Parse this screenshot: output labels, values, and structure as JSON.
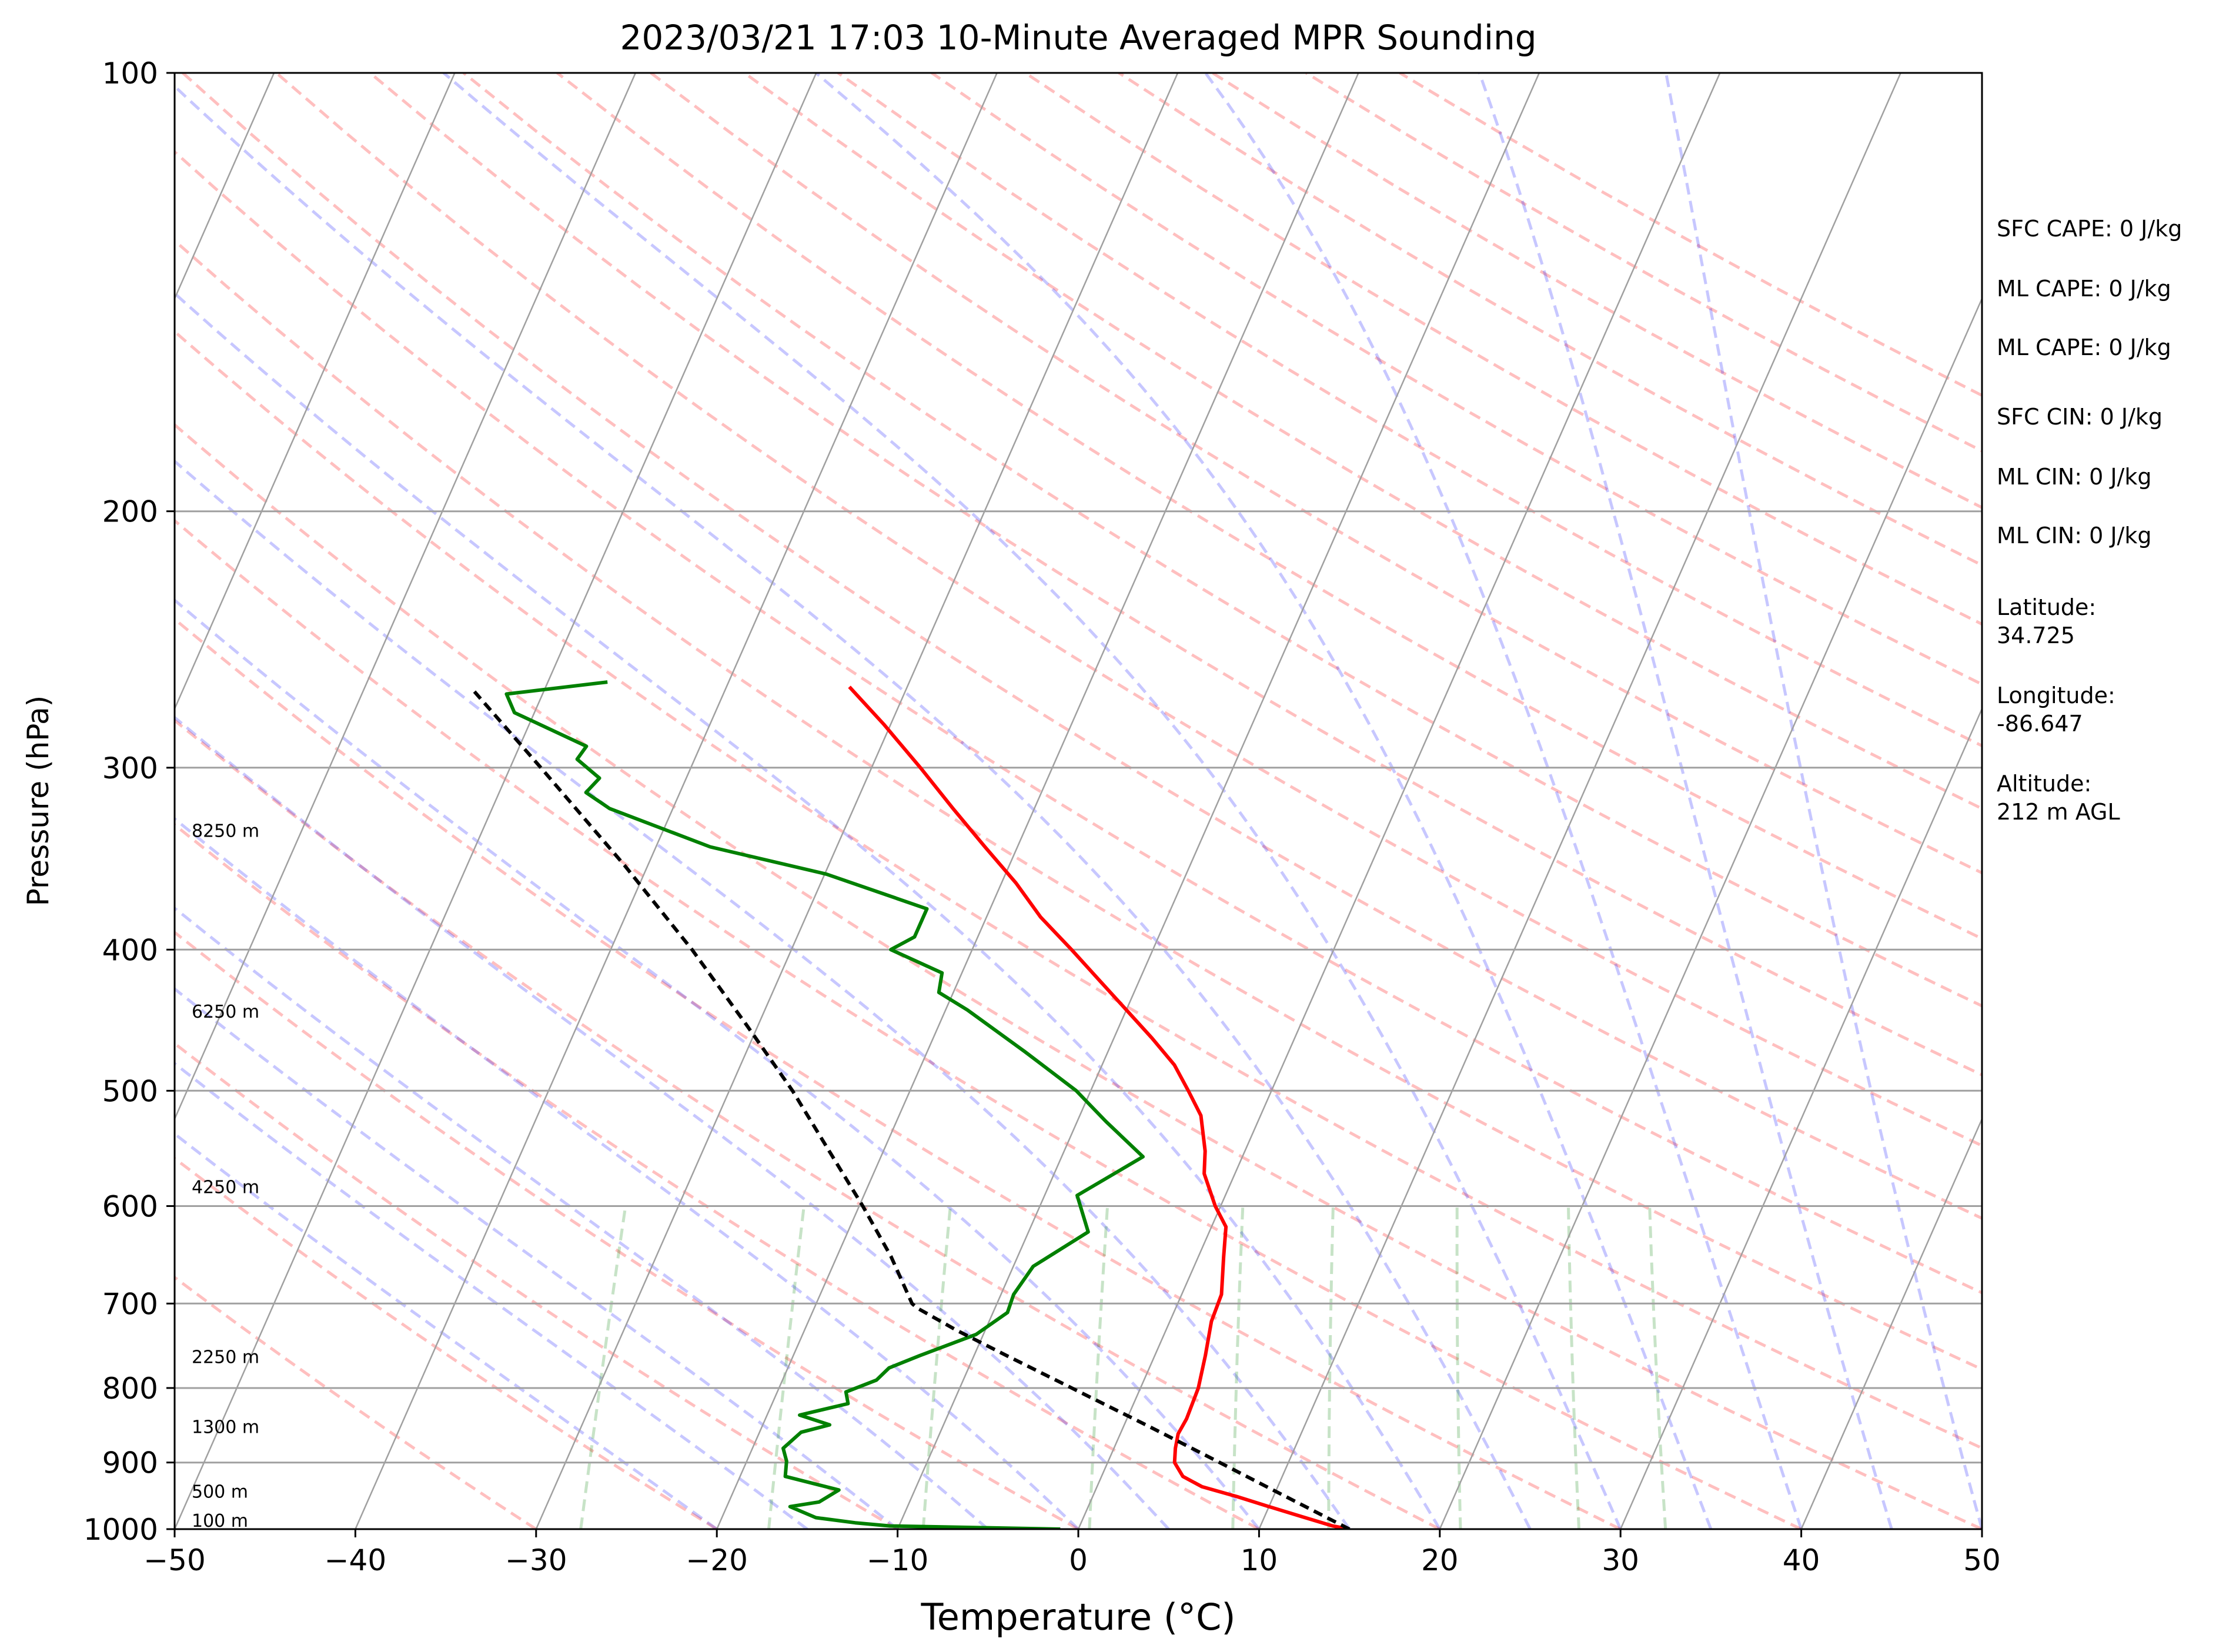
{
  "chart_data": {
    "type": "line",
    "title": "2023/03/21 17:03 10-Minute Averaged MPR Sounding",
    "xlabel": "Temperature (°C)",
    "ylabel": "Pressure (hPa)",
    "xlim": [
      -50,
      50
    ],
    "ylim": [
      1000,
      100
    ],
    "y_scale": "log",
    "skew": "skew-T",
    "grid": true,
    "x_ticks": [
      -50,
      -40,
      -30,
      -20,
      -10,
      0,
      10,
      20,
      30,
      40,
      50
    ],
    "x_tick_labels": [
      "−50",
      "−40",
      "−30",
      "−20",
      "−10",
      "0",
      "10",
      "20",
      "30",
      "40",
      "50"
    ],
    "y_ticks": [
      1000,
      900,
      800,
      700,
      600,
      500,
      400,
      300,
      200,
      100
    ],
    "y_tick_labels": [
      "1000",
      "900",
      "800",
      "700",
      "600",
      "500",
      "400",
      "300",
      "200",
      "100"
    ],
    "height_labels": [
      {
        "p": 1000,
        "text": "100 m"
      },
      {
        "p": 955,
        "text": "500 m"
      },
      {
        "p": 862,
        "text": "1300 m"
      },
      {
        "p": 772,
        "text": "2250 m"
      },
      {
        "p": 590,
        "text": "4250 m"
      },
      {
        "p": 447,
        "text": "6250 m"
      },
      {
        "p": 336,
        "text": "8250 m"
      }
    ],
    "side_panel": [
      "SFC CAPE: 0 J/kg",
      "ML CAPE: 0 J/kg",
      "ML CAPE: 0 J/kg",
      "SFC CIN: 0 J/kg",
      "ML CIN: 0 J/kg",
      "ML CIN: 0 J/kg",
      "Latitude:\n34.725",
      "Longitude:\n-86.647",
      "Altitude:\n212 m AGL"
    ],
    "series": [
      {
        "role": "temperature",
        "color": "#ff0000",
        "points": [
          [
            1000,
            15.0
          ],
          [
            995,
            14.0
          ],
          [
            980,
            12.0
          ],
          [
            965,
            10.0
          ],
          [
            950,
            8.0
          ],
          [
            935,
            5.8
          ],
          [
            920,
            4.5
          ],
          [
            900,
            3.7
          ],
          [
            880,
            3.4
          ],
          [
            860,
            3.2
          ],
          [
            840,
            3.3
          ],
          [
            800,
            3.2
          ],
          [
            760,
            2.8
          ],
          [
            720,
            2.3
          ],
          [
            690,
            2.2
          ],
          [
            650,
            1.4
          ],
          [
            620,
            0.8
          ],
          [
            600,
            -0.3
          ],
          [
            570,
            -1.7
          ],
          [
            550,
            -2.2
          ],
          [
            520,
            -3.3
          ],
          [
            500,
            -4.6
          ],
          [
            480,
            -6.0
          ],
          [
            460,
            -7.9
          ],
          [
            440,
            -10.0
          ],
          [
            420,
            -12.2
          ],
          [
            400,
            -14.5
          ],
          [
            380,
            -17.0
          ],
          [
            360,
            -19.2
          ],
          [
            340,
            -21.8
          ],
          [
            320,
            -24.5
          ],
          [
            300,
            -27.3
          ],
          [
            280,
            -30.4
          ],
          [
            264,
            -33.2
          ]
        ]
      },
      {
        "role": "dewpoint",
        "color": "#008000",
        "points": [
          [
            1000,
            -1.0
          ],
          [
            995,
            -10.5
          ],
          [
            990,
            -12.5
          ],
          [
            982,
            -14.8
          ],
          [
            965,
            -16.5
          ],
          [
            958,
            -15.0
          ],
          [
            940,
            -14.2
          ],
          [
            920,
            -17.5
          ],
          [
            898,
            -17.8
          ],
          [
            880,
            -18.3
          ],
          [
            858,
            -17.7
          ],
          [
            848,
            -16.3
          ],
          [
            835,
            -18.2
          ],
          [
            820,
            -15.8
          ],
          [
            805,
            -16.2
          ],
          [
            790,
            -14.8
          ],
          [
            775,
            -14.4
          ],
          [
            760,
            -13.0
          ],
          [
            735,
            -10.4
          ],
          [
            710,
            -9.2
          ],
          [
            690,
            -9.3
          ],
          [
            660,
            -8.9
          ],
          [
            625,
            -6.7
          ],
          [
            590,
            -8.2
          ],
          [
            555,
            -5.5
          ],
          [
            525,
            -8.4
          ],
          [
            500,
            -10.8
          ],
          [
            470,
            -14.6
          ],
          [
            440,
            -18.8
          ],
          [
            428,
            -20.8
          ],
          [
            415,
            -21.1
          ],
          [
            400,
            -24.5
          ],
          [
            392,
            -23.5
          ],
          [
            375,
            -23.5
          ],
          [
            355,
            -29.9
          ],
          [
            340,
            -37.0
          ],
          [
            320,
            -43.5
          ],
          [
            312,
            -45.2
          ],
          [
            305,
            -44.8
          ],
          [
            296,
            -46.5
          ],
          [
            290,
            -46.3
          ],
          [
            275,
            -51.1
          ],
          [
            267,
            -52.0
          ],
          [
            262,
            -46.7
          ]
        ]
      },
      {
        "role": "parcel-profile",
        "color": "#000000",
        "dashed": true,
        "points": [
          [
            1000,
            15.0
          ],
          [
            950,
            10.7
          ],
          [
            900,
            6.2
          ],
          [
            850,
            1.4
          ],
          [
            800,
            -3.8
          ],
          [
            760,
            -8.2
          ],
          [
            730,
            -11.6
          ],
          [
            705,
            -14.3
          ],
          [
            700,
            -14.7
          ],
          [
            650,
            -17.0
          ],
          [
            600,
            -19.8
          ],
          [
            550,
            -23.0
          ],
          [
            500,
            -26.5
          ],
          [
            450,
            -30.7
          ],
          [
            400,
            -35.5
          ],
          [
            350,
            -41.3
          ],
          [
            300,
            -48.3
          ],
          [
            265,
            -54.0
          ]
        ]
      }
    ]
  }
}
